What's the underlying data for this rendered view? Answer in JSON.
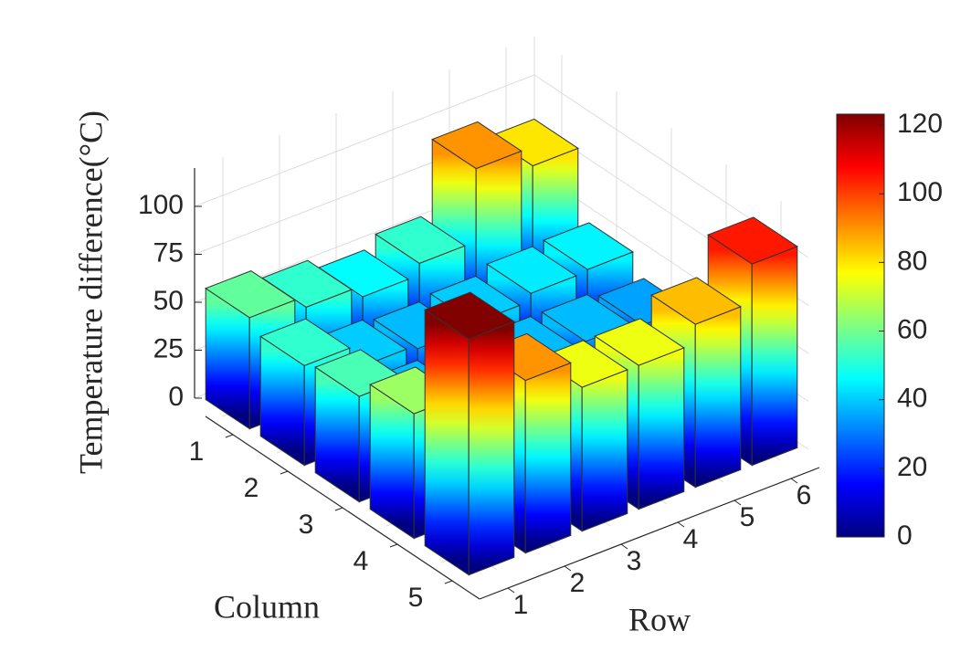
{
  "chart_data": {
    "type": "bar3d",
    "xlabel": "Column",
    "ylabel": "Row",
    "zlabel": "Temperature difference(°C)",
    "columns": [
      1,
      2,
      3,
      4,
      5
    ],
    "rows": [
      1,
      2,
      3,
      4,
      5,
      6
    ],
    "values": [
      [
        58,
        52,
        46,
        52,
        90,
        80
      ],
      [
        52,
        40,
        38,
        40,
        44,
        45
      ],
      [
        55,
        38,
        40,
        38,
        38,
        35
      ],
      [
        65,
        40,
        42,
        40,
        35,
        40
      ],
      [
        123,
        90,
        75,
        75,
        85,
        105
      ]
    ],
    "zlim": [
      0,
      120
    ],
    "zticks": [
      0,
      25,
      50,
      75,
      100
    ],
    "colormap": "jet",
    "clim": [
      0,
      123.2
    ],
    "cticks": [
      0,
      20,
      40,
      60,
      80,
      100,
      120
    ],
    "grid": true
  }
}
